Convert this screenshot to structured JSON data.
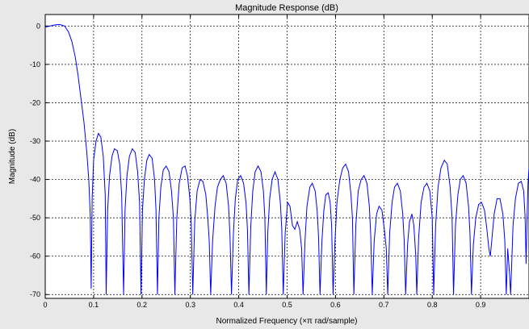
{
  "chart_data": {
    "type": "line",
    "title": "Magnitude Response (dB)",
    "xlabel": "Normalized Frequency (×π rad/sample)",
    "ylabel": "Magnitude (dB)",
    "xlim": [
      0,
      1
    ],
    "ylim": [
      -71,
      3
    ],
    "grid": true,
    "xticks": [
      "0",
      "0.1",
      "0.2",
      "0.3",
      "0.4",
      "0.5",
      "0.6",
      "0.7",
      "0.8",
      "0.9"
    ],
    "yticks": [
      "0",
      "-10",
      "-20",
      "-30",
      "-40",
      "-50",
      "-60",
      "-70"
    ],
    "line_color": "#0000ff",
    "series": [
      {
        "points": [
          [
            0.0,
            -0.3
          ],
          [
            0.01,
            0.0
          ],
          [
            0.02,
            0.3
          ],
          [
            0.03,
            0.4
          ],
          [
            0.04,
            0.0
          ],
          [
            0.048,
            -1.5
          ],
          [
            0.055,
            -4
          ],
          [
            0.062,
            -8
          ],
          [
            0.068,
            -13
          ],
          [
            0.074,
            -19
          ],
          [
            0.08,
            -25
          ],
          [
            0.086,
            -33
          ],
          [
            0.09,
            -40
          ],
          [
            0.093,
            -49
          ],
          [
            0.095,
            -68.5
          ],
          [
            0.097,
            -45
          ],
          [
            0.1,
            -35
          ],
          [
            0.105,
            -30
          ],
          [
            0.11,
            -28
          ],
          [
            0.115,
            -29
          ],
          [
            0.12,
            -34
          ],
          [
            0.124,
            -44
          ],
          [
            0.126,
            -70
          ],
          [
            0.129,
            -48
          ],
          [
            0.133,
            -39
          ],
          [
            0.138,
            -34
          ],
          [
            0.143,
            -32
          ],
          [
            0.149,
            -32.5
          ],
          [
            0.154,
            -36
          ],
          [
            0.158,
            -44
          ],
          [
            0.162,
            -70
          ],
          [
            0.165,
            -48
          ],
          [
            0.169,
            -39
          ],
          [
            0.174,
            -34
          ],
          [
            0.18,
            -32
          ],
          [
            0.186,
            -33
          ],
          [
            0.191,
            -38
          ],
          [
            0.195,
            -46
          ],
          [
            0.198,
            -70
          ],
          [
            0.201,
            -48
          ],
          [
            0.205,
            -40
          ],
          [
            0.21,
            -35
          ],
          [
            0.215,
            -33.5
          ],
          [
            0.221,
            -34.5
          ],
          [
            0.226,
            -40
          ],
          [
            0.229,
            -48
          ],
          [
            0.232,
            -70
          ],
          [
            0.235,
            -50
          ],
          [
            0.239,
            -42
          ],
          [
            0.244,
            -37.5
          ],
          [
            0.25,
            -36.5
          ],
          [
            0.256,
            -38
          ],
          [
            0.261,
            -43
          ],
          [
            0.265,
            -50
          ],
          [
            0.268,
            -70
          ],
          [
            0.272,
            -50
          ],
          [
            0.277,
            -41
          ],
          [
            0.283,
            -37
          ],
          [
            0.289,
            -36.5
          ],
          [
            0.294,
            -39
          ],
          [
            0.299,
            -45
          ],
          [
            0.302,
            -52
          ],
          [
            0.305,
            -70
          ],
          [
            0.309,
            -51
          ],
          [
            0.314,
            -43
          ],
          [
            0.32,
            -40
          ],
          [
            0.326,
            -40.5
          ],
          [
            0.332,
            -44
          ],
          [
            0.336,
            -50
          ],
          [
            0.339,
            -56
          ],
          [
            0.342,
            -70
          ],
          [
            0.346,
            -56
          ],
          [
            0.351,
            -47
          ],
          [
            0.356,
            -42
          ],
          [
            0.362,
            -40
          ],
          [
            0.368,
            -39
          ],
          [
            0.374,
            -41
          ],
          [
            0.379,
            -47
          ],
          [
            0.382,
            -55
          ],
          [
            0.385,
            -70
          ],
          [
            0.389,
            -54
          ],
          [
            0.393,
            -45
          ],
          [
            0.398,
            -40
          ],
          [
            0.404,
            -39
          ],
          [
            0.41,
            -41
          ],
          [
            0.415,
            -46
          ],
          [
            0.418,
            -53
          ],
          [
            0.421,
            -70
          ],
          [
            0.425,
            -52
          ],
          [
            0.429,
            -43
          ],
          [
            0.434,
            -38
          ],
          [
            0.44,
            -36.5
          ],
          [
            0.446,
            -38
          ],
          [
            0.451,
            -43
          ],
          [
            0.454,
            -50
          ],
          [
            0.457,
            -70
          ],
          [
            0.46,
            -54
          ],
          [
            0.464,
            -45
          ],
          [
            0.469,
            -40
          ],
          [
            0.475,
            -38
          ],
          [
            0.481,
            -40
          ],
          [
            0.486,
            -46
          ],
          [
            0.489,
            -53
          ],
          [
            0.492,
            -70
          ],
          [
            0.496,
            -54
          ],
          [
            0.501,
            -46
          ],
          [
            0.506,
            -47
          ],
          [
            0.511,
            -52
          ],
          [
            0.516,
            -53
          ],
          [
            0.521,
            -51
          ],
          [
            0.526,
            -53
          ],
          [
            0.53,
            -58
          ],
          [
            0.533,
            -70
          ],
          [
            0.537,
            -56
          ],
          [
            0.541,
            -47
          ],
          [
            0.547,
            -42
          ],
          [
            0.552,
            -41
          ],
          [
            0.558,
            -43
          ],
          [
            0.562,
            -48
          ],
          [
            0.565,
            -55
          ],
          [
            0.568,
            -70
          ],
          [
            0.572,
            -56
          ],
          [
            0.576,
            -48
          ],
          [
            0.58,
            -44
          ],
          [
            0.585,
            -43.5
          ],
          [
            0.589,
            -46
          ],
          [
            0.592,
            -52
          ],
          [
            0.595,
            -70
          ],
          [
            0.599,
            -56
          ],
          [
            0.603,
            -46
          ],
          [
            0.609,
            -40
          ],
          [
            0.615,
            -37
          ],
          [
            0.621,
            -36
          ],
          [
            0.627,
            -38
          ],
          [
            0.632,
            -44
          ],
          [
            0.635,
            -50
          ],
          [
            0.638,
            -70
          ],
          [
            0.642,
            -52
          ],
          [
            0.647,
            -43
          ],
          [
            0.653,
            -40
          ],
          [
            0.659,
            -39
          ],
          [
            0.665,
            -41
          ],
          [
            0.67,
            -47
          ],
          [
            0.673,
            -55
          ],
          [
            0.676,
            -70
          ],
          [
            0.68,
            -56
          ],
          [
            0.685,
            -49
          ],
          [
            0.69,
            -47
          ],
          [
            0.696,
            -48
          ],
          [
            0.701,
            -53
          ],
          [
            0.705,
            -58
          ],
          [
            0.708,
            -70
          ],
          [
            0.712,
            -54
          ],
          [
            0.717,
            -46
          ],
          [
            0.722,
            -42
          ],
          [
            0.728,
            -41
          ],
          [
            0.734,
            -43
          ],
          [
            0.739,
            -49
          ],
          [
            0.742,
            -56
          ],
          [
            0.745,
            -70
          ],
          [
            0.749,
            -57
          ],
          [
            0.753,
            -51
          ],
          [
            0.758,
            -49
          ],
          [
            0.762,
            -52
          ],
          [
            0.766,
            -60
          ],
          [
            0.768,
            -70
          ],
          [
            0.772,
            -55
          ],
          [
            0.777,
            -46
          ],
          [
            0.783,
            -42
          ],
          [
            0.789,
            -41
          ],
          [
            0.795,
            -43
          ],
          [
            0.8,
            -50
          ],
          [
            0.803,
            -70
          ],
          [
            0.807,
            -52
          ],
          [
            0.812,
            -42
          ],
          [
            0.818,
            -37
          ],
          [
            0.825,
            -35
          ],
          [
            0.831,
            -36
          ],
          [
            0.837,
            -42
          ],
          [
            0.841,
            -50
          ],
          [
            0.844,
            -70
          ],
          [
            0.848,
            -52
          ],
          [
            0.853,
            -44
          ],
          [
            0.858,
            -40
          ],
          [
            0.864,
            -39
          ],
          [
            0.87,
            -41
          ],
          [
            0.875,
            -47
          ],
          [
            0.878,
            -54
          ],
          [
            0.881,
            -70
          ],
          [
            0.885,
            -57
          ],
          [
            0.89,
            -50
          ],
          [
            0.896,
            -46.5
          ],
          [
            0.902,
            -46
          ],
          [
            0.908,
            -48
          ],
          [
            0.913,
            -53
          ],
          [
            0.917,
            -58
          ],
          [
            0.92,
            -60
          ],
          [
            0.923,
            -56
          ],
          [
            0.928,
            -49
          ],
          [
            0.934,
            -45
          ],
          [
            0.94,
            -45
          ],
          [
            0.946,
            -49
          ],
          [
            0.95,
            -56
          ],
          [
            0.953,
            -70
          ],
          [
            0.956,
            -58
          ],
          [
            0.96,
            -65
          ],
          [
            0.962,
            -70
          ],
          [
            0.964,
            -63
          ],
          [
            0.967,
            -52
          ],
          [
            0.972,
            -45
          ],
          [
            0.978,
            -41
          ],
          [
            0.984,
            -40.5
          ],
          [
            0.989,
            -43
          ],
          [
            0.992,
            -50
          ],
          [
            0.994,
            -62
          ],
          [
            0.996,
            -50
          ],
          [
            0.998,
            -41
          ],
          [
            1.0,
            -37
          ]
        ]
      }
    ]
  }
}
